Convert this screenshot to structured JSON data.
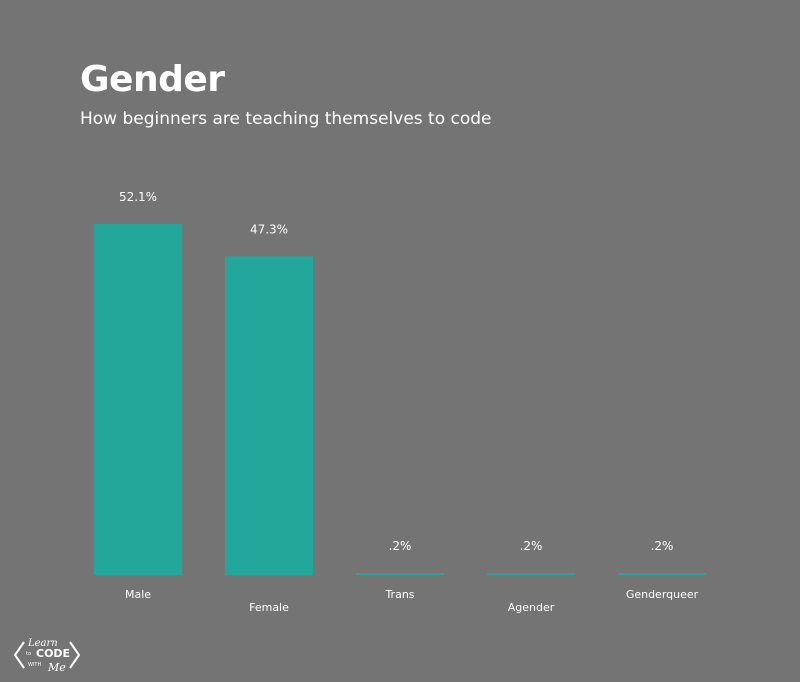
{
  "chart_data": {
    "type": "bar",
    "title": "Gender",
    "subtitle": "How beginners are teaching themselves to code",
    "categories": [
      "Male",
      "Female",
      "Trans",
      "Agender",
      "Genderqueer"
    ],
    "values": [
      52.1,
      47.3,
      0.2,
      0.2,
      0.2
    ],
    "value_labels": [
      "52.1%",
      "47.3%",
      ".2%",
      ".2%",
      ".2%"
    ],
    "xlabel": "",
    "ylabel": "",
    "ylim": [
      0,
      52.1
    ],
    "grid": false,
    "legend": "none",
    "bar_color": "#24a79b",
    "background_color": "#747474",
    "text_color": "#ffffff"
  },
  "logo": {
    "text_top": "Learn",
    "text_mid": "to",
    "text_main": "CODE",
    "text_with": "WITH",
    "text_me": "Me"
  }
}
